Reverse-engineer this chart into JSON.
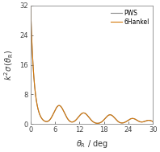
{
  "title": "",
  "xlabel": "$\\theta_\\mathrm{R}$ / deg",
  "ylabel": "$k^2\\sigma\\,(\\theta_\\mathrm{R})$",
  "xlim": [
    0,
    30
  ],
  "ylim": [
    0,
    32
  ],
  "xticks": [
    0,
    6,
    12,
    18,
    24,
    30
  ],
  "yticks": [
    0,
    8,
    16,
    24,
    32
  ],
  "legend_labels": [
    "PWS",
    "6Hankel"
  ],
  "pws_color": "#888888",
  "hankel_color": "#D4780A",
  "background_color": "#ffffff",
  "figsize": [
    1.98,
    1.89
  ],
  "dpi": 100
}
